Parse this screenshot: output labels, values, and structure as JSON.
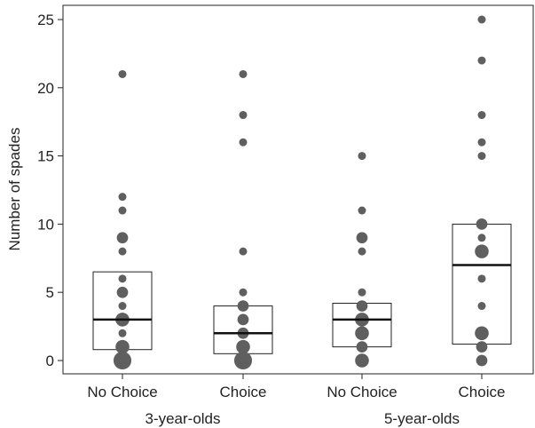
{
  "chart_data": {
    "type": "scatter",
    "title": "",
    "xlabel": "",
    "ylabel": "Number of spades",
    "ylim": [
      0,
      25
    ],
    "yticks": [
      0,
      5,
      10,
      15,
      20,
      25
    ],
    "grid": false,
    "legend": "none",
    "colors": {
      "point": "#5f5f5f",
      "box_stroke": "#222222",
      "median": "#111111"
    },
    "categories": [
      "No Choice",
      "Choice",
      "No Choice",
      "Choice"
    ],
    "groups": [
      {
        "label": "3-year-olds",
        "categories": [
          0,
          1
        ]
      },
      {
        "label": "5-year-olds",
        "categories": [
          2,
          3
        ]
      }
    ],
    "series": [
      {
        "box": {
          "q1": 0.8,
          "median": 3,
          "q3": 6.5
        },
        "points": [
          {
            "y": 0,
            "count": 5
          },
          {
            "y": 1,
            "count": 3
          },
          {
            "y": 2,
            "count": 1
          },
          {
            "y": 3,
            "count": 3
          },
          {
            "y": 4,
            "count": 1
          },
          {
            "y": 5,
            "count": 2
          },
          {
            "y": 6,
            "count": 1
          },
          {
            "y": 8,
            "count": 1
          },
          {
            "y": 9,
            "count": 2
          },
          {
            "y": 11,
            "count": 1
          },
          {
            "y": 12,
            "count": 1
          },
          {
            "y": 21,
            "count": 1
          }
        ]
      },
      {
        "box": {
          "q1": 0.5,
          "median": 2,
          "q3": 4
        },
        "points": [
          {
            "y": 0,
            "count": 5
          },
          {
            "y": 1,
            "count": 3
          },
          {
            "y": 2,
            "count": 2
          },
          {
            "y": 3,
            "count": 2
          },
          {
            "y": 4,
            "count": 2
          },
          {
            "y": 5,
            "count": 1
          },
          {
            "y": 8,
            "count": 1
          },
          {
            "y": 16,
            "count": 1
          },
          {
            "y": 18,
            "count": 1
          },
          {
            "y": 21,
            "count": 1
          }
        ]
      },
      {
        "box": {
          "q1": 1,
          "median": 3,
          "q3": 4.2
        },
        "points": [
          {
            "y": 0,
            "count": 3
          },
          {
            "y": 1,
            "count": 2
          },
          {
            "y": 2,
            "count": 3
          },
          {
            "y": 3,
            "count": 3
          },
          {
            "y": 4,
            "count": 2
          },
          {
            "y": 5,
            "count": 1
          },
          {
            "y": 8,
            "count": 1
          },
          {
            "y": 9,
            "count": 2
          },
          {
            "y": 11,
            "count": 1
          },
          {
            "y": 15,
            "count": 1
          }
        ]
      },
      {
        "box": {
          "q1": 1.2,
          "median": 7,
          "q3": 10
        },
        "points": [
          {
            "y": 0,
            "count": 2
          },
          {
            "y": 1,
            "count": 2
          },
          {
            "y": 2,
            "count": 3
          },
          {
            "y": 4,
            "count": 1
          },
          {
            "y": 6,
            "count": 1
          },
          {
            "y": 8,
            "count": 3
          },
          {
            "y": 9,
            "count": 1
          },
          {
            "y": 10,
            "count": 2
          },
          {
            "y": 15,
            "count": 1
          },
          {
            "y": 16,
            "count": 1
          },
          {
            "y": 18,
            "count": 1
          },
          {
            "y": 22,
            "count": 1
          },
          {
            "y": 25,
            "count": 1
          }
        ]
      }
    ]
  }
}
